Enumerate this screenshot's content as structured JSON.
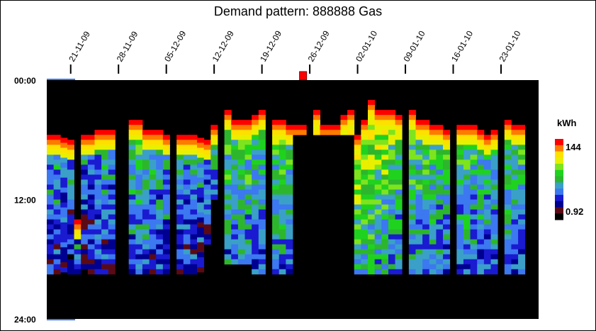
{
  "chart_data": {
    "type": "heatmap",
    "title": "Demand pattern: 888888 Gas",
    "x_axis": {
      "start_date": "2009-11-18",
      "end_date": "2010-01-29",
      "tick_labels": [
        "21-11-09",
        "28-11-09",
        "05-12-09",
        "12-12-09",
        "19-12-09",
        "26-12-09",
        "02-01-10",
        "09-01-10",
        "16-01-10",
        "23-01-10"
      ]
    },
    "y_axis": {
      "tick_labels": [
        "00:00",
        "12:00",
        "24:00"
      ],
      "range_hours": [
        0,
        24
      ]
    },
    "legend": {
      "unit": "kWh",
      "max_label": "144",
      "min_label": "0.92",
      "placement": "right",
      "colors": [
        "#000000",
        "#5a0a14",
        "#000090",
        "#1a1ad0",
        "#3c78f0",
        "#3aa0c8",
        "#2db62d",
        "#1fd21f",
        "#7de41e",
        "#e8f000",
        "#ffe000",
        "#ff7a00",
        "#ff0000"
      ]
    },
    "colors": {
      "background": "#000000",
      "marker": "#ff0000",
      "edge_strip": "#3c78f0"
    },
    "marker_date": "2009-12-25",
    "days": [
      {
        "date": "2009-11-18",
        "on": 5.5,
        "off": 19.5,
        "level": 0.45
      },
      {
        "date": "2009-11-19",
        "on": 5.5,
        "off": 19.5,
        "level": 0.45
      },
      {
        "date": "2009-11-20",
        "on": 5.8,
        "off": 19.5,
        "level": 0.42
      },
      {
        "date": "2009-11-21",
        "on": 6.0,
        "off": 19.5,
        "level": 0.4
      },
      {
        "date": "2009-11-22",
        "on": 14.0,
        "off": 19.5,
        "level": 0.35
      },
      {
        "date": "2009-11-23",
        "on": 5.5,
        "off": 19.5,
        "level": 0.4
      },
      {
        "date": "2009-11-24",
        "on": 5.5,
        "off": 19.5,
        "level": 0.42
      },
      {
        "date": "2009-11-25",
        "on": 5.0,
        "off": 19.5,
        "level": 0.44
      },
      {
        "date": "2009-11-26",
        "on": 5.0,
        "off": 19.5,
        "level": 0.45
      },
      {
        "date": "2009-11-27",
        "on": 5.0,
        "off": 19.5,
        "level": 0.45
      },
      {
        "date": "2009-11-28",
        "on": null,
        "off": null,
        "level": 0
      },
      {
        "date": "2009-11-29",
        "on": null,
        "off": null,
        "level": 0
      },
      {
        "date": "2009-11-30",
        "on": 4.0,
        "off": 19.5,
        "level": 0.55
      },
      {
        "date": "2009-12-01",
        "on": 4.0,
        "off": 19.5,
        "level": 0.55
      },
      {
        "date": "2009-12-02",
        "on": 5.0,
        "off": 19.5,
        "level": 0.52
      },
      {
        "date": "2009-12-03",
        "on": 5.0,
        "off": 19.5,
        "level": 0.5
      },
      {
        "date": "2009-12-04",
        "on": 5.0,
        "off": 19.5,
        "level": 0.48
      },
      {
        "date": "2009-12-05",
        "on": 5.5,
        "off": 19.5,
        "level": 0.48
      },
      {
        "date": "2009-12-06",
        "on": null,
        "off": null,
        "level": 0
      },
      {
        "date": "2009-12-07",
        "on": 5.5,
        "off": 19.5,
        "level": 0.45
      },
      {
        "date": "2009-12-08",
        "on": 5.5,
        "off": 19.5,
        "level": 0.45
      },
      {
        "date": "2009-12-09",
        "on": 5.5,
        "off": 19.5,
        "level": 0.45
      },
      {
        "date": "2009-12-10",
        "on": 5.8,
        "off": 19.5,
        "level": 0.43
      },
      {
        "date": "2009-12-11",
        "on": 6.0,
        "off": 16.5,
        "level": 0.4
      },
      {
        "date": "2009-12-12",
        "on": 4.5,
        "off": 12.0,
        "level": 0.45
      },
      {
        "date": "2009-12-13",
        "on": null,
        "off": null,
        "level": 0
      },
      {
        "date": "2009-12-14",
        "on": 3.0,
        "off": 18.5,
        "level": 0.6
      },
      {
        "date": "2009-12-15",
        "on": 4.0,
        "off": 18.5,
        "level": 0.6
      },
      {
        "date": "2009-12-16",
        "on": 4.0,
        "off": 18.5,
        "level": 0.58
      },
      {
        "date": "2009-12-17",
        "on": 4.0,
        "off": 18.5,
        "level": 0.58
      },
      {
        "date": "2009-12-18",
        "on": 3.5,
        "off": 19.5,
        "level": 0.55
      },
      {
        "date": "2009-12-19",
        "on": 3.0,
        "off": 19.5,
        "level": 0.55
      },
      {
        "date": "2009-12-20",
        "on": null,
        "off": null,
        "level": 0
      },
      {
        "date": "2009-12-21",
        "on": 4.0,
        "off": 19.5,
        "level": 0.6
      },
      {
        "date": "2009-12-22",
        "on": 4.0,
        "off": 19.5,
        "level": 0.6
      },
      {
        "date": "2009-12-23",
        "on": 4.5,
        "off": 19.5,
        "level": 0.58
      },
      {
        "date": "2009-12-24",
        "on": 4.5,
        "off": 5.5,
        "level": 0.95
      },
      {
        "date": "2009-12-25",
        "on": 4.5,
        "off": 5.5,
        "level": 0.95
      },
      {
        "date": "2009-12-26",
        "on": null,
        "off": null,
        "level": 0
      },
      {
        "date": "2009-12-27",
        "on": 3.0,
        "off": 5.5,
        "level": 0.95
      },
      {
        "date": "2009-12-28",
        "on": 4.5,
        "off": 5.5,
        "level": 0.95
      },
      {
        "date": "2009-12-29",
        "on": 4.5,
        "off": 5.5,
        "level": 0.95
      },
      {
        "date": "2009-12-30",
        "on": 4.5,
        "off": 5.5,
        "level": 0.95
      },
      {
        "date": "2009-12-31",
        "on": 3.5,
        "off": 5.5,
        "level": 0.95
      },
      {
        "date": "2010-01-01",
        "on": 3.0,
        "off": 5.5,
        "level": 0.95
      },
      {
        "date": "2010-01-02",
        "on": 5.5,
        "off": 19.5,
        "level": 0.7
      },
      {
        "date": "2010-01-03",
        "on": 4.0,
        "off": 19.5,
        "level": 0.72
      },
      {
        "date": "2010-01-04",
        "on": 2.0,
        "off": 19.5,
        "level": 0.75
      },
      {
        "date": "2010-01-05",
        "on": 3.0,
        "off": 19.5,
        "level": 0.7
      },
      {
        "date": "2010-01-06",
        "on": 3.0,
        "off": 19.5,
        "level": 0.68
      },
      {
        "date": "2010-01-07",
        "on": 3.0,
        "off": 19.5,
        "level": 0.65
      },
      {
        "date": "2010-01-08",
        "on": 3.5,
        "off": 19.5,
        "level": 0.62
      },
      {
        "date": "2010-01-09",
        "on": null,
        "off": null,
        "level": 0
      },
      {
        "date": "2010-01-10",
        "on": 3.0,
        "off": 19.5,
        "level": 0.62
      },
      {
        "date": "2010-01-11",
        "on": 4.0,
        "off": 19.5,
        "level": 0.6
      },
      {
        "date": "2010-01-12",
        "on": 4.0,
        "off": 19.5,
        "level": 0.6
      },
      {
        "date": "2010-01-13",
        "on": 4.5,
        "off": 19.5,
        "level": 0.58
      },
      {
        "date": "2010-01-14",
        "on": 4.5,
        "off": 19.5,
        "level": 0.56
      },
      {
        "date": "2010-01-15",
        "on": 5.0,
        "off": 19.5,
        "level": 0.55
      },
      {
        "date": "2010-01-16",
        "on": null,
        "off": null,
        "level": 0
      },
      {
        "date": "2010-01-17",
        "on": 4.5,
        "off": 19.5,
        "level": 0.58
      },
      {
        "date": "2010-01-18",
        "on": 4.5,
        "off": 19.5,
        "level": 0.58
      },
      {
        "date": "2010-01-19",
        "on": 4.5,
        "off": 19.5,
        "level": 0.55
      },
      {
        "date": "2010-01-20",
        "on": 5.0,
        "off": 19.5,
        "level": 0.55
      },
      {
        "date": "2010-01-21",
        "on": 5.5,
        "off": 19.5,
        "level": 0.52
      },
      {
        "date": "2010-01-22",
        "on": 5.0,
        "off": 19.5,
        "level": 0.52
      },
      {
        "date": "2010-01-23",
        "on": null,
        "off": null,
        "level": 0
      },
      {
        "date": "2010-01-24",
        "on": 4.0,
        "off": 19.5,
        "level": 0.58
      },
      {
        "date": "2010-01-25",
        "on": 4.5,
        "off": 19.5,
        "level": 0.55
      },
      {
        "date": "2010-01-26",
        "on": 4.5,
        "off": 19.5,
        "level": 0.55
      }
    ]
  }
}
